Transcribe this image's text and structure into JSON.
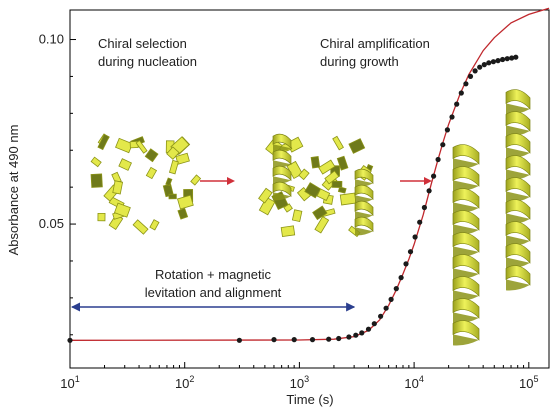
{
  "chart_data": {
    "type": "scatter",
    "xscale": "log",
    "xlim": [
      10,
      150000
    ],
    "ylim": [
      0.011,
      0.108
    ],
    "xlabel": "Time (s)",
    "ylabel": "Absorbance at 490 nm",
    "x_ticks": [
      {
        "value": 10,
        "base": "10",
        "exp": "1"
      },
      {
        "value": 100,
        "base": "10",
        "exp": "2"
      },
      {
        "value": 1000,
        "base": "10",
        "exp": "3"
      },
      {
        "value": 10000,
        "base": "10",
        "exp": "4"
      },
      {
        "value": 100000,
        "base": "10",
        "exp": "5"
      }
    ],
    "y_ticks": [
      {
        "value": 0.05,
        "label": "0.05"
      },
      {
        "value": 0.1,
        "label": "0.10"
      }
    ],
    "series": [
      {
        "type": "scatter",
        "color": "#1a1a1a",
        "points": [
          [
            10,
            0.0185
          ],
          [
            300,
            0.0185
          ],
          [
            600,
            0.0187
          ],
          [
            900,
            0.0187
          ],
          [
            1300,
            0.0187
          ],
          [
            1800,
            0.0188
          ],
          [
            2200,
            0.019
          ],
          [
            2700,
            0.0194
          ],
          [
            3100,
            0.0199
          ],
          [
            3500,
            0.0205
          ],
          [
            4000,
            0.0215
          ],
          [
            4500,
            0.023
          ],
          [
            5100,
            0.025
          ],
          [
            5700,
            0.0272
          ],
          [
            6300,
            0.0296
          ],
          [
            7000,
            0.0325
          ],
          [
            7700,
            0.0355
          ],
          [
            8500,
            0.0392
          ],
          [
            9300,
            0.0425
          ],
          [
            10200,
            0.0465
          ],
          [
            11200,
            0.0505
          ],
          [
            12300,
            0.0545
          ],
          [
            13500,
            0.059
          ],
          [
            14800,
            0.063
          ],
          [
            16200,
            0.0675
          ],
          [
            17800,
            0.0715
          ],
          [
            19500,
            0.0755
          ],
          [
            21400,
            0.079
          ],
          [
            23500,
            0.0825
          ],
          [
            25800,
            0.0855
          ],
          [
            28300,
            0.088
          ],
          [
            31000,
            0.09
          ],
          [
            34000,
            0.0915
          ],
          [
            37300,
            0.0925
          ],
          [
            40900,
            0.0932
          ],
          [
            44800,
            0.0937
          ],
          [
            49100,
            0.094
          ],
          [
            53900,
            0.0943
          ],
          [
            59100,
            0.0946
          ],
          [
            64800,
            0.0948
          ],
          [
            71000,
            0.095
          ],
          [
            77000,
            0.0952
          ]
        ]
      },
      {
        "type": "line",
        "color": "#c0282d",
        "points": [
          [
            10,
            0.0185
          ],
          [
            1000,
            0.0186
          ],
          [
            2000,
            0.0188
          ],
          [
            3000,
            0.0195
          ],
          [
            4000,
            0.0212
          ],
          [
            5000,
            0.024
          ],
          [
            6000,
            0.028
          ],
          [
            7000,
            0.0322
          ],
          [
            8000,
            0.0365
          ],
          [
            9000,
            0.0405
          ],
          [
            10000,
            0.0445
          ],
          [
            12000,
            0.0525
          ],
          [
            14000,
            0.0605
          ],
          [
            16000,
            0.067
          ],
          [
            18000,
            0.0725
          ],
          [
            20000,
            0.077
          ],
          [
            25000,
            0.085
          ],
          [
            30000,
            0.0905
          ],
          [
            40000,
            0.097
          ],
          [
            50000,
            0.1005
          ],
          [
            70000,
            0.1045
          ],
          [
            100000,
            0.1068
          ],
          [
            150000,
            0.1085
          ]
        ]
      }
    ],
    "annotations": {
      "nucleation_line1": "Chiral selection",
      "nucleation_line2": "during nucleation",
      "growth_line1": "Chiral amplification",
      "growth_line2": "during growth",
      "levitation_line1": "Rotation + magnetic",
      "levitation_line2": "levitation and alignment"
    },
    "levitation_arrow_range": [
      10,
      3000
    ],
    "colors": {
      "ribbon_light": "#e3e84a",
      "ribbon_dark": "#8c9417",
      "fragment_dark": "#6f7a1a",
      "flow_arrow": "#d0303a",
      "double_arrow": "#2b3f8f"
    }
  }
}
